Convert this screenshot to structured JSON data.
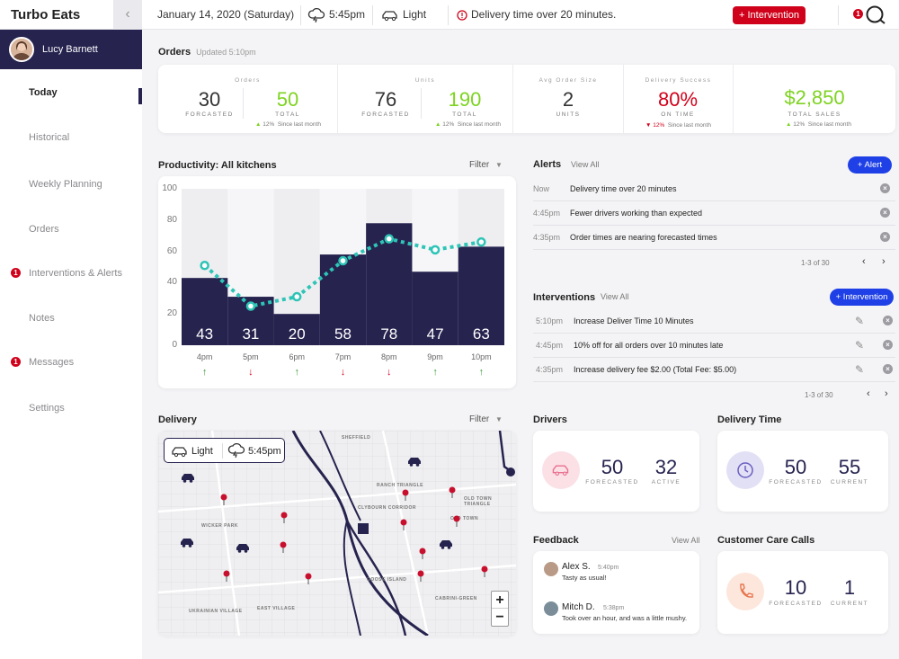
{
  "app": {
    "title": "Turbo Eats"
  },
  "topbar": {
    "date": "January 14, 2020 (Saturday)",
    "weather_time": "5:45pm",
    "traffic": "Light",
    "alert_text": "Delivery time over 20 minutes.",
    "intervention_button": "+ Intervention",
    "notification_count": "1"
  },
  "user": {
    "name": "Lucy Barnett"
  },
  "nav": {
    "items": [
      {
        "label": "Today",
        "badge": ""
      },
      {
        "label": "Historical",
        "badge": ""
      },
      {
        "label": "Weekly Planning",
        "badge": ""
      },
      {
        "label": "Orders",
        "badge": ""
      },
      {
        "label": "Interventions & Alerts",
        "badge": "1"
      },
      {
        "label": "Notes",
        "badge": ""
      },
      {
        "label": "Messages",
        "badge": "1"
      },
      {
        "label": "Settings",
        "badge": ""
      }
    ]
  },
  "orders_section": {
    "title": "Orders",
    "updated": "Updated 5:10pm"
  },
  "stats": {
    "orders": {
      "label": "Orders",
      "forecasted": "30",
      "forecasted_label": "FORCASTED",
      "total": "50",
      "total_label": "TOTAL",
      "trend_pct": "12%",
      "trend_text": "Since last month"
    },
    "units": {
      "label": "Units",
      "forecasted": "76",
      "forecasted_label": "FORCASTED",
      "total": "190",
      "total_label": "TOTAL",
      "trend_pct": "12%",
      "trend_text": "Since last month"
    },
    "avg_order": {
      "label": "Avg Order Size",
      "value": "2",
      "value_label": "UNITS"
    },
    "delivery_success": {
      "label": "Delivery Success",
      "value": "80%",
      "value_label": "ON TIME",
      "trend_pct": "12%",
      "trend_text": "Since last month"
    },
    "sales": {
      "value": "$2,850",
      "value_label": "TOTAL SALES",
      "trend_pct": "12%",
      "trend_text": "Since last month"
    }
  },
  "productivity": {
    "title": "Productivity: All kitchens",
    "filter": "Filter"
  },
  "chart_data": {
    "type": "bar",
    "title": "Productivity: All kitchens",
    "categories": [
      "4pm",
      "5pm",
      "6pm",
      "7pm",
      "8pm",
      "9pm",
      "10pm"
    ],
    "series": [
      {
        "type": "bar",
        "values": [
          43,
          31,
          20,
          58,
          78,
          47,
          63
        ]
      },
      {
        "type": "line",
        "values": [
          51,
          25,
          31,
          54,
          68,
          61,
          66
        ]
      }
    ],
    "trends": [
      "up",
      "down",
      "up",
      "down",
      "down",
      "up",
      "up"
    ],
    "ylim": [
      0,
      100
    ],
    "yticks": [
      0,
      20,
      40,
      60,
      80,
      100
    ],
    "grid": false,
    "colors": {
      "bar": "#26234f",
      "line": "#2ec4b6",
      "up": "#3a9a3a",
      "down": "#d0021b"
    }
  },
  "alerts": {
    "title": "Alerts",
    "view_all": "View All",
    "add_button": "+ Alert",
    "rows": [
      {
        "time": "Now",
        "text": "Delivery time over 20 minutes"
      },
      {
        "time": "4:45pm",
        "text": "Fewer drivers working than expected"
      },
      {
        "time": "4:35pm",
        "text": "Order times are nearing forecasted times"
      }
    ],
    "pager": "1-3 of 30"
  },
  "interventions": {
    "title": "Interventions",
    "view_all": "View All",
    "add_button": "+ Intervention",
    "rows": [
      {
        "time": "5:10pm",
        "text": "Increase Deliver Time 10 Minutes"
      },
      {
        "time": "4:45pm",
        "text": "10% off for all orders over 10 minutes late"
      },
      {
        "time": "4:35pm",
        "text": "Increase delivery fee $2.00 (Total Fee: $5.00)"
      }
    ],
    "pager": "1-3 of 30"
  },
  "delivery": {
    "title": "Delivery",
    "filter": "Filter",
    "traffic": "Light",
    "weather_time": "5:45pm",
    "zoom_in": "+",
    "zoom_out": "−",
    "map_labels": [
      "SHEFFIELD",
      "RANCH TRIANGLE",
      "CLYBOURN CORRIDOR",
      "OLD TOWN TRIANGLE",
      "OLD TOWN",
      "WICKER PARK",
      "GOOSE ISLAND",
      "CABRINI-GREEN",
      "EAST VILLAGE",
      "UKRAINIAN VILLAGE"
    ]
  },
  "drivers": {
    "title": "Drivers",
    "forecasted": "50",
    "forecasted_label": "FORECASTED",
    "active": "32",
    "active_label": "ACTIVE"
  },
  "delivery_time": {
    "title": "Delivery Time",
    "forecasted": "50",
    "forecasted_label": "FORECASTED",
    "current": "55",
    "current_label": "CURRENT"
  },
  "feedback": {
    "title": "Feedback",
    "view_all": "View All",
    "items": [
      {
        "name": "Alex S.",
        "time": "5:40pm",
        "text": "Tasty as usual!"
      },
      {
        "name": "Mitch D.",
        "time": "5:38pm",
        "text": "Took over an hour, and was a little mushy."
      }
    ]
  },
  "care_calls": {
    "title": "Customer Care Calls",
    "forecasted": "10",
    "forecasted_label": "FORECASTED",
    "current": "1",
    "current_label": "CURRENT"
  }
}
